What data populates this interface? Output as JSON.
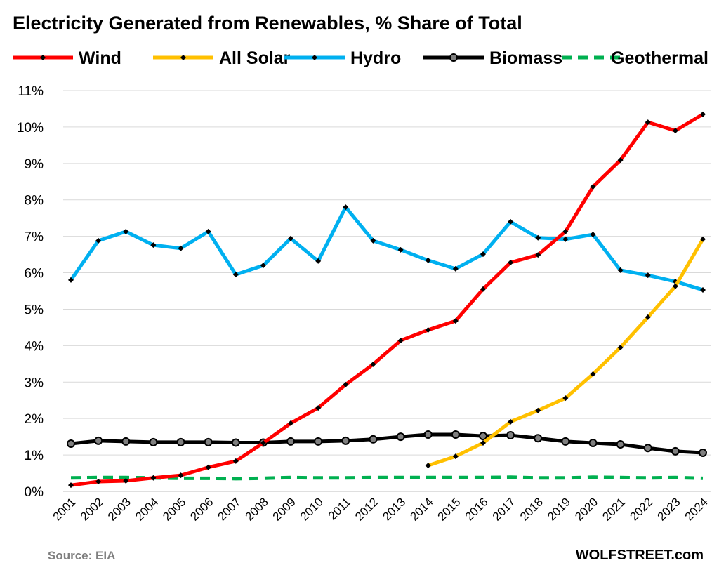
{
  "chart_data": {
    "type": "line",
    "title": "Electricity Generated from Renewables, % Share of Total",
    "x": [
      2001,
      2002,
      2003,
      2004,
      2005,
      2006,
      2007,
      2008,
      2009,
      2010,
      2011,
      2012,
      2013,
      2014,
      2015,
      2016,
      2017,
      2018,
      2019,
      2020,
      2021,
      2022,
      2023,
      2024
    ],
    "ylim": [
      0,
      11
    ],
    "yticks": [
      "0%",
      "1%",
      "2%",
      "3%",
      "4%",
      "5%",
      "6%",
      "7%",
      "8%",
      "9%",
      "10%",
      "11%"
    ],
    "grid": true,
    "legend_placement": "top",
    "series": [
      {
        "name": "Wind",
        "color": "#ff0000",
        "style": "solid-diamond",
        "values": [
          0.17,
          0.27,
          0.29,
          0.37,
          0.44,
          0.66,
          0.83,
          1.33,
          1.87,
          2.29,
          2.93,
          3.49,
          4.14,
          4.43,
          4.68,
          5.55,
          6.28,
          6.49,
          7.13,
          8.36,
          9.09,
          10.13,
          9.9,
          10.35
        ]
      },
      {
        "name": "All Solar",
        "color": "#ffc000",
        "style": "solid-diamond",
        "values": [
          null,
          null,
          null,
          null,
          null,
          null,
          null,
          null,
          null,
          null,
          null,
          null,
          null,
          0.71,
          0.96,
          1.33,
          1.91,
          2.22,
          2.56,
          3.22,
          3.95,
          4.78,
          5.63,
          6.92
        ]
      },
      {
        "name": "Hydro",
        "color": "#00b0f0",
        "style": "solid-diamond",
        "values": [
          5.8,
          6.88,
          7.13,
          6.76,
          6.67,
          7.13,
          5.95,
          6.2,
          6.94,
          6.32,
          7.8,
          6.88,
          6.63,
          6.34,
          6.11,
          6.51,
          7.4,
          6.96,
          6.92,
          7.05,
          6.07,
          5.93,
          5.76,
          5.53
        ]
      },
      {
        "name": "Biomass",
        "color": "#000000",
        "style": "solid-circle",
        "values": [
          1.31,
          1.39,
          1.37,
          1.35,
          1.35,
          1.35,
          1.34,
          1.34,
          1.37,
          1.37,
          1.39,
          1.43,
          1.5,
          1.56,
          1.56,
          1.52,
          1.54,
          1.46,
          1.37,
          1.33,
          1.29,
          1.19,
          1.1,
          1.06
        ]
      },
      {
        "name": "Geothermal",
        "color": "#00b050",
        "style": "dashed",
        "values": [
          0.37,
          0.38,
          0.38,
          0.37,
          0.36,
          0.36,
          0.35,
          0.36,
          0.38,
          0.37,
          0.37,
          0.38,
          0.38,
          0.38,
          0.38,
          0.38,
          0.39,
          0.37,
          0.37,
          0.39,
          0.38,
          0.37,
          0.38,
          0.36
        ]
      }
    ]
  },
  "footer": {
    "source": "Source: EIA",
    "brand": "WOLFSTREET.com"
  }
}
